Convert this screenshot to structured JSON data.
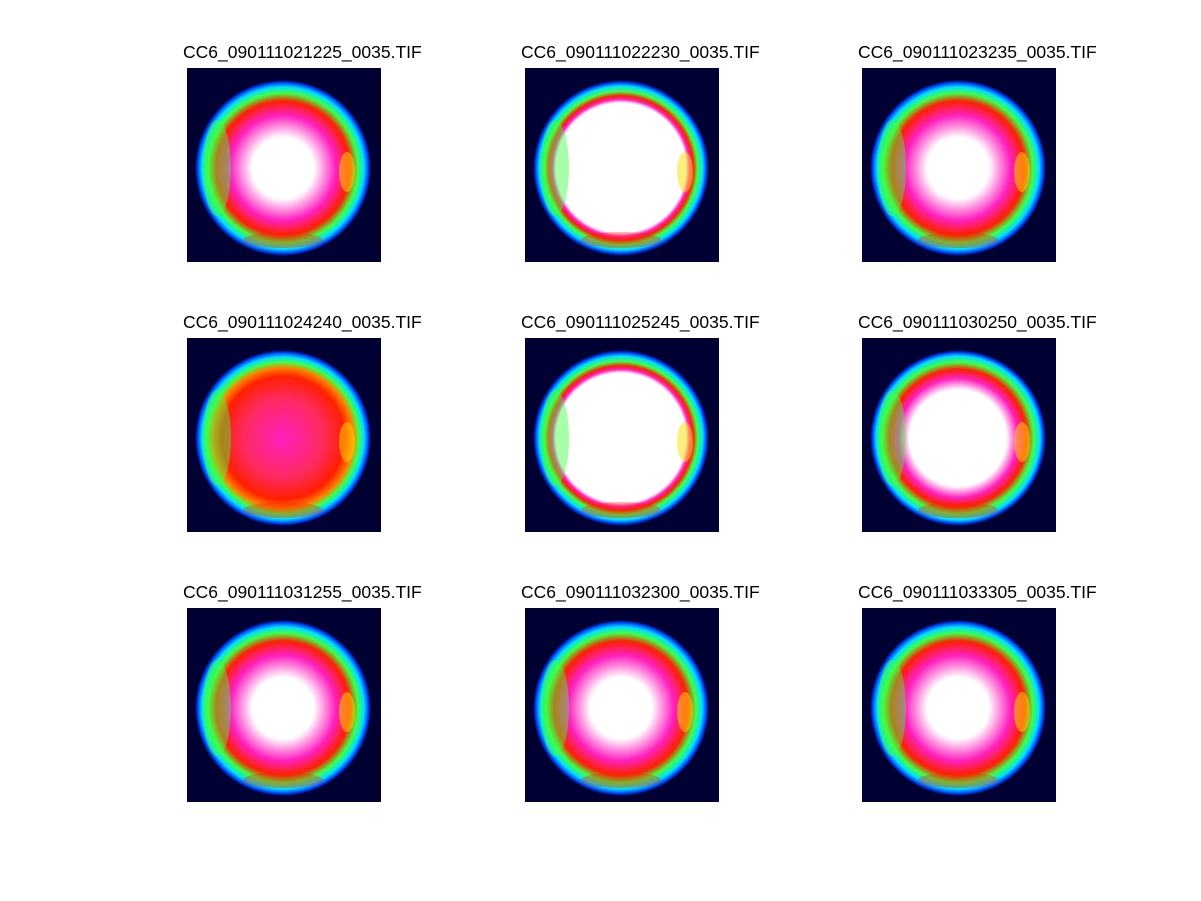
{
  "panels": [
    {
      "title": "CC6_090111021225_0035.TIF",
      "variant": "pink-white"
    },
    {
      "title": "CC6_090111022230_0035.TIF",
      "variant": "white-large"
    },
    {
      "title": "CC6_090111023235_0035.TIF",
      "variant": "pink-white"
    },
    {
      "title": "CC6_090111024240_0035.TIF",
      "variant": "red-orange"
    },
    {
      "title": "CC6_090111025245_0035.TIF",
      "variant": "white-large"
    },
    {
      "title": "CC6_090111030250_0035.TIF",
      "variant": "white-medium"
    },
    {
      "title": "CC6_090111031255_0035.TIF",
      "variant": "pink-white"
    },
    {
      "title": "CC6_090111032300_0035.TIF",
      "variant": "pink-white"
    },
    {
      "title": "CC6_090111033305_0035.TIF",
      "variant": "pink-white"
    }
  ],
  "colors": {
    "background": "#000033",
    "ring_blue": "#0040ff",
    "ring_cyan": "#00e0ff",
    "ring_green": "#40ff40",
    "ring_yellow": "#ffe000",
    "ring_red": "#ff2000",
    "magenta": "#ff20c0",
    "white": "#ffffff"
  }
}
